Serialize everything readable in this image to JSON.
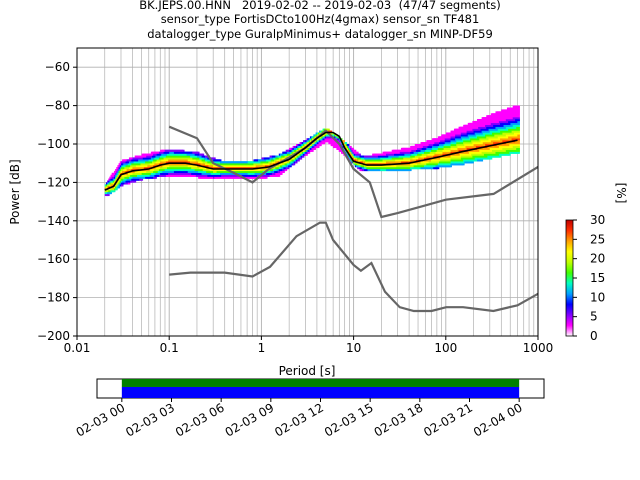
{
  "title": {
    "line1": "BK.JEPS.00.HNN   2019-02-02 -- 2019-02-03  (47/47 segments)",
    "line2": "sensor_type FortisDCto100Hz(4gmax) sensor_sn TF481",
    "line3": "datalogger_type GuralpMinimus+ datalogger_sn MINP-DF59"
  },
  "chart_data": [
    {
      "type": "heatmap",
      "title": "BK.JEPS.00.HNN   2019-02-02 -- 2019-02-03  (47/47 segments)",
      "xlabel": "Period [s]",
      "ylabel": "Power [dB]",
      "xscale": "log",
      "xlim": [
        0.01,
        1000
      ],
      "ylim": [
        -200,
        -50
      ],
      "x_ticks": [
        "0.01",
        "0.1",
        "1",
        "10",
        "100",
        "1000"
      ],
      "y_ticks": [
        "−200",
        "−180",
        "−160",
        "−140",
        "−120",
        "−100",
        "−80",
        "−60"
      ],
      "grid": true,
      "colorbar": {
        "label": "[%]",
        "range": [
          0,
          30
        ],
        "ticks": [
          "0",
          "5",
          "10",
          "15",
          "20",
          "25",
          "30"
        ],
        "colors": [
          "#ffffff",
          "#ff00ff",
          "#8000ff",
          "#0000ff",
          "#00a0ff",
          "#00ffc0",
          "#40ff00",
          "#c0ff00",
          "#ffff00",
          "#ffa000",
          "#ff3000",
          "#c00000"
        ]
      },
      "mode_curve": {
        "period": [
          0.02,
          0.025,
          0.03,
          0.04,
          0.06,
          0.08,
          0.1,
          0.15,
          0.2,
          0.3,
          0.5,
          0.8,
          1.2,
          2,
          3,
          4,
          5,
          6,
          7,
          8,
          10,
          14,
          20,
          40,
          80,
          150,
          300,
          600
        ],
        "power": [
          -124,
          -122,
          -116,
          -114,
          -113,
          -111,
          -110,
          -110,
          -111,
          -113,
          -113,
          -113,
          -112,
          -108,
          -102,
          -97,
          -94,
          -94,
          -96,
          -102,
          -109,
          -111,
          -111,
          -110,
          -107,
          -104,
          -101,
          -98
        ]
      },
      "density": [
        {
          "period": [
            0.02,
            0.03,
            0.05,
            0.1,
            0.2,
            0.4,
            0.8,
            1.5,
            3,
            5,
            8,
            12,
            20,
            40,
            80,
            150,
            300,
            600
          ],
          "lower": [
            -127,
            -121,
            -118,
            -116,
            -117,
            -118,
            -118,
            -116,
            -105,
            -98,
            -106,
            -114,
            -114,
            -113,
            -112,
            -110,
            -107,
            -104
          ],
          "upper": [
            -121,
            -109,
            -106,
            -103,
            -105,
            -110,
            -109,
            -106,
            -98,
            -92,
            -100,
            -107,
            -105,
            -102,
            -97,
            -91,
            -85,
            -80
          ]
        }
      ],
      "noise_models": [
        {
          "name": "",
          "period": [
            0.1,
            0.2,
            0.3,
            0.5,
            0.8,
            1.2,
            2,
            3,
            4,
            5,
            7,
            10,
            15,
            20,
            30,
            60,
            100,
            330,
            1000
          ],
          "power": [
            -91,
            -97,
            -110,
            -115,
            -120,
            -113,
            -107,
            -102,
            -97,
            -93,
            -100,
            -113,
            -120,
            -138,
            -136,
            -132,
            -129,
            -126,
            -112
          ]
        },
        {
          "name": "",
          "period": [
            0.1,
            0.17,
            0.4,
            0.8,
            1.24,
            2.4,
            4.3,
            5,
            6,
            10,
            12,
            15.6,
            21.9,
            31.6,
            45,
            70,
            101,
            154,
            328,
            600,
            1000
          ],
          "power": [
            -168,
            -167,
            -167,
            -169,
            -164,
            -148,
            -141,
            -141,
            -150,
            -163,
            -166,
            -162,
            -177,
            -185,
            -187,
            -187,
            -185,
            -185,
            -187,
            -184,
            -178
          ]
        }
      ]
    },
    {
      "type": "bar",
      "x_tick_labels": [
        "02-03 00",
        "02-03 03",
        "02-03 06",
        "02-03 09",
        "02-03 12",
        "02-03 15",
        "02-03 18",
        "02-03 21",
        "02-04 00"
      ],
      "xlim_hours": [
        -1.5,
        25.5
      ],
      "coverage": [
        {
          "start_hour": 0,
          "end_hour": 24
        }
      ],
      "colors": {
        "coverage_top": "#008000",
        "coverage_bottom": "#0000ff"
      }
    }
  ]
}
